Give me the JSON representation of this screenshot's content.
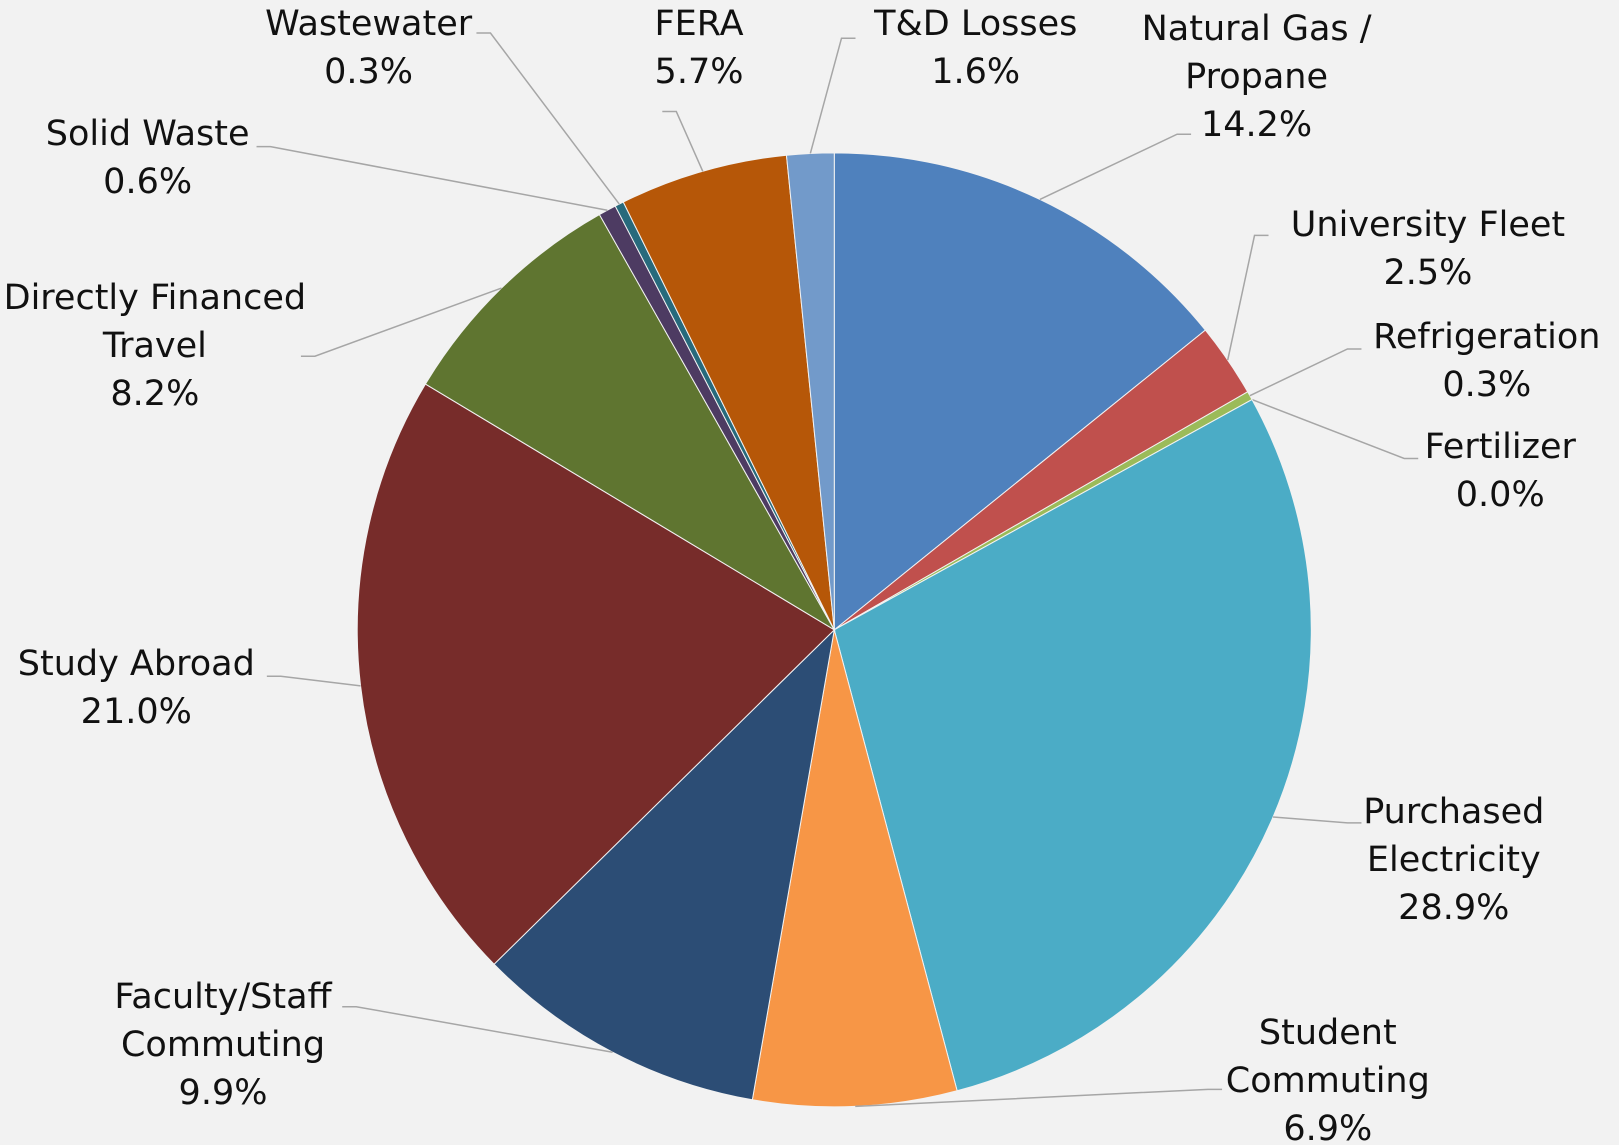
{
  "chart_data": {
    "type": "pie",
    "categories": [
      "Natural Gas / Propane",
      "University Fleet",
      "Refrigeration",
      "Fertilizer",
      "Purchased Electricity",
      "Student Commuting",
      "Faculty/Staff Commuting",
      "Study Abroad",
      "Directly Financed Travel",
      "Solid Waste",
      "Wastewater",
      "FERA",
      "T&D Losses"
    ],
    "values": [
      14.2,
      2.5,
      0.3,
      0.0,
      28.9,
      6.9,
      9.9,
      21.0,
      8.2,
      0.6,
      0.3,
      5.7,
      1.6
    ],
    "value_labels": [
      "14.2%",
      "2.5%",
      "0.3%",
      "0.0%",
      "28.9%",
      "6.9%",
      "9.9%",
      "21.0%",
      "8.2%",
      "0.6%",
      "0.3%",
      "5.7%",
      "1.6%"
    ],
    "colors": [
      "#4f81bd",
      "#c0504d",
      "#9bbb59",
      "#8064a2",
      "#4bacc6",
      "#f79646",
      "#2c4d75",
      "#772c2a",
      "#5f7530",
      "#4d3b62",
      "#276a7c",
      "#b65708",
      "#729aca"
    ]
  }
}
